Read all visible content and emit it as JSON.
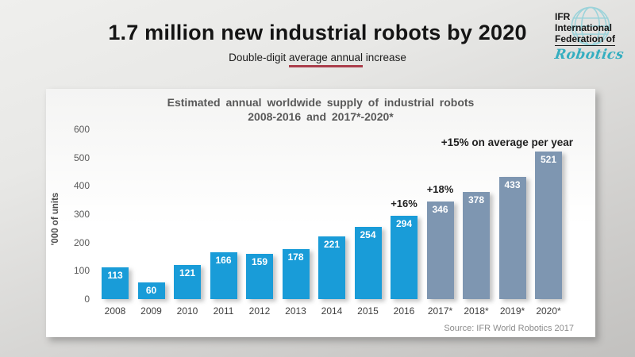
{
  "header": {
    "title": "1.7 million new industrial robots by 2020",
    "subtitle_prefix": "Double-digit ",
    "subtitle_underlined": "average annual",
    "subtitle_suffix": " increase",
    "underline_color": "#ab3e4b"
  },
  "logo": {
    "line1": "IFR",
    "line2": "International",
    "line3": "Federation of",
    "wordmark": "Robotics",
    "wordmark_color": "#35aec0",
    "globe_color": "#9bd3da"
  },
  "chart_data": {
    "type": "bar",
    "title_line1": "Estimated annual worldwide supply of industrial robots",
    "title_line2": "2008-2016 and 2017*-2020*",
    "ylabel": "'000 of units",
    "ylim": [
      0,
      600
    ],
    "yticks": [
      0,
      100,
      200,
      300,
      400,
      500,
      600
    ],
    "grid": false,
    "legend": "none",
    "categories": [
      "2008",
      "2009",
      "2010",
      "2011",
      "2012",
      "2013",
      "2014",
      "2015",
      "2016",
      "2017*",
      "2018*",
      "2019*",
      "2020*"
    ],
    "values": [
      113,
      60,
      121,
      166,
      159,
      178,
      221,
      254,
      294,
      346,
      378,
      433,
      521
    ],
    "forecast_start_index": 9,
    "bar_colors": {
      "actual": "#199cd8",
      "forecast": "#7e96b1"
    },
    "annotations": [
      {
        "text": "+16%",
        "bar_index": 8
      },
      {
        "text": "+18%",
        "bar_index": 9
      },
      {
        "text": "+15% on average per year",
        "bar_index": null
      }
    ],
    "source": "Source: IFR World Robotics 2017"
  }
}
